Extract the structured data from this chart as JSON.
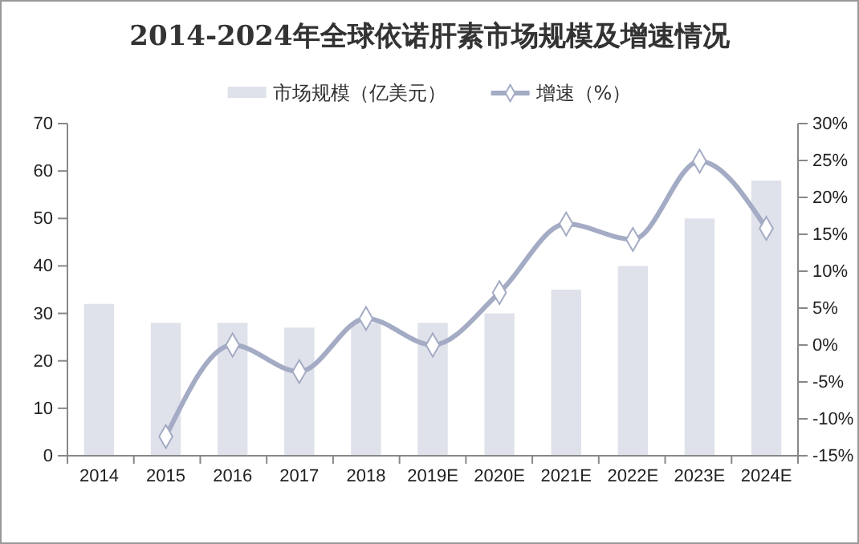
{
  "chart_data": {
    "type": "bar",
    "title": "2014-2024年全球依诺肝素市场规模及增速情况",
    "categories": [
      "2014",
      "2015",
      "2016",
      "2017",
      "2018",
      "2019E",
      "2020E",
      "2021E",
      "2022E",
      "2023E",
      "2024E"
    ],
    "series": [
      {
        "name": "市场规模（亿美元）",
        "color": "#dfe2ea",
        "values": [
          32,
          28,
          28,
          27,
          28,
          28,
          30,
          35,
          40,
          50,
          58
        ]
      },
      {
        "name": "增速（%）",
        "type": "line",
        "axis": "y2",
        "color": "#a4abc4",
        "marker": "diamond",
        "values": [
          null,
          -12.4,
          0,
          -3.6,
          3.6,
          0,
          7.1,
          16.4,
          14.3,
          24.9,
          15.8
        ]
      }
    ],
    "ylim": [
      0,
      70
    ],
    "yticks": [
      0,
      10,
      20,
      30,
      40,
      50,
      60,
      70
    ],
    "y2lim": [
      -15,
      30
    ],
    "y2ticks": [
      {
        "value": -15,
        "label": "-15%"
      },
      {
        "value": -10,
        "label": "-10%"
      },
      {
        "value": -5,
        "label": "-5%"
      },
      {
        "value": 0,
        "label": "0%"
      },
      {
        "value": 5,
        "label": "5%"
      },
      {
        "value": 10,
        "label": "10%"
      },
      {
        "value": 15,
        "label": "15%"
      },
      {
        "value": 20,
        "label": "20%"
      },
      {
        "value": 25,
        "label": "25%"
      },
      {
        "value": 30,
        "label": "30%"
      }
    ],
    "legend": "top"
  }
}
